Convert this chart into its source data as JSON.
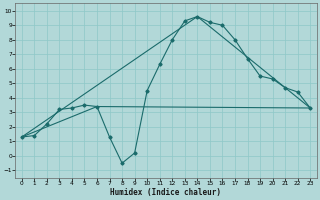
{
  "xlabel": "Humidex (Indice chaleur)",
  "bg_color": "#b2d8d8",
  "grid_color": "#8ec8c8",
  "line_color": "#1a6b6b",
  "xlim": [
    -0.5,
    23.5
  ],
  "ylim": [
    -1.5,
    10.5
  ],
  "xticks": [
    0,
    1,
    2,
    3,
    4,
    5,
    6,
    7,
    8,
    9,
    10,
    11,
    12,
    13,
    14,
    15,
    16,
    17,
    18,
    19,
    20,
    21,
    22,
    23
  ],
  "yticks": [
    -1,
    0,
    1,
    2,
    3,
    4,
    5,
    6,
    7,
    8,
    9,
    10
  ],
  "series1_x": [
    0,
    1,
    2,
    3,
    4,
    5,
    6,
    7,
    8,
    9,
    10,
    11,
    12,
    13,
    14,
    15,
    16,
    17,
    18,
    19,
    20,
    21,
    22,
    23
  ],
  "series1_y": [
    1.3,
    1.4,
    2.2,
    3.2,
    3.3,
    3.5,
    3.4,
    1.3,
    -0.5,
    0.2,
    4.5,
    6.3,
    8.0,
    9.3,
    9.6,
    9.2,
    9.0,
    8.0,
    6.7,
    5.5,
    5.3,
    4.7,
    4.4,
    3.3
  ],
  "series2_x": [
    0,
    6,
    23
  ],
  "series2_y": [
    1.3,
    3.4,
    3.3
  ],
  "series3_x": [
    0,
    14,
    23
  ],
  "series3_y": [
    1.3,
    9.6,
    3.3
  ]
}
